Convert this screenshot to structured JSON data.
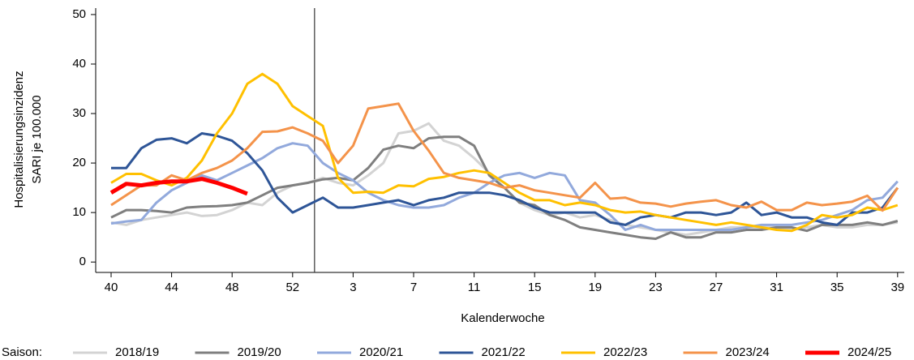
{
  "chart_data": {
    "type": "line",
    "ylabel": [
      "Hospitalisierungsinzidenz",
      "SARI je 100.000"
    ],
    "xlabel": "Kalenderwoche",
    "legend_title": "Saison:",
    "legend_position": "bottom",
    "categories": [
      "40",
      null,
      null,
      null,
      "44",
      null,
      null,
      null,
      "48",
      null,
      null,
      null,
      "52",
      null,
      null,
      null,
      "3",
      null,
      null,
      null,
      "7",
      null,
      null,
      null,
      "11",
      null,
      null,
      null,
      "15",
      null,
      null,
      null,
      "19",
      null,
      null,
      null,
      "23",
      null,
      null,
      null,
      "27",
      null,
      null,
      null,
      "31",
      null,
      null,
      null,
      "35",
      null,
      null,
      null,
      "39"
    ],
    "ylim": [
      -2.1,
      51.3
    ],
    "yticks": [
      0,
      10,
      20,
      30,
      40,
      50
    ],
    "series": [
      {
        "name": "2018/19",
        "color": "#d3d3d3",
        "width": 3,
        "values": [
          8,
          7.5,
          8.5,
          9,
          9.5,
          10,
          9.3,
          9.5,
          10.5,
          12,
          11.5,
          14,
          15.5,
          16,
          17,
          16,
          15.5,
          17.5,
          20,
          26,
          26.5,
          28,
          24.5,
          23.5,
          21,
          18,
          15,
          12,
          10.5,
          9.5,
          10,
          9,
          9.5,
          8.5,
          7.5,
          7,
          6.5,
          6,
          5.5,
          6,
          6.5,
          7,
          7,
          7,
          7,
          6.5,
          7,
          7.5,
          7,
          7,
          7.5,
          7.5,
          8
        ]
      },
      {
        "name": "2019/20",
        "color": "#7f7f7f",
        "width": 3,
        "values": [
          9,
          10.5,
          10.5,
          10.3,
          10,
          11,
          11.2,
          11.3,
          11.5,
          12,
          13.5,
          15,
          15.5,
          16,
          16.7,
          17,
          16.5,
          19,
          22.7,
          23.5,
          23,
          25,
          25.3,
          25.3,
          23.5,
          17.5,
          15,
          12,
          11.5,
          9.5,
          8.5,
          7,
          6.5,
          6,
          5.5,
          5,
          4.7,
          6,
          5,
          5,
          6,
          6,
          6.5,
          6.5,
          7,
          7,
          6.3,
          7.5,
          7.5,
          7.5,
          8,
          7.5,
          8.3
        ]
      },
      {
        "name": "2020/21",
        "color": "#92a9dc",
        "width": 3,
        "values": [
          7.8,
          8.2,
          8.5,
          12,
          14.5,
          16,
          17.5,
          16.5,
          18,
          19.5,
          21,
          23,
          24,
          23.5,
          20,
          18,
          16.5,
          14,
          12.5,
          11.5,
          11,
          11,
          11.5,
          13,
          14,
          16,
          17.5,
          18,
          17,
          18,
          17.5,
          12.5,
          12,
          9.5,
          6.5,
          7.5,
          6.5,
          6.5,
          6.5,
          6.5,
          6.5,
          6.5,
          7,
          7.5,
          7.5,
          7.5,
          8,
          8.5,
          9.5,
          10.5,
          12.5,
          13,
          16.3
        ]
      },
      {
        "name": "2021/22",
        "color": "#2e5597",
        "width": 3,
        "values": [
          19,
          19,
          23,
          24.7,
          25,
          24,
          26,
          25.5,
          24.5,
          22,
          18.5,
          13,
          10,
          11.5,
          13,
          11,
          11,
          11.5,
          12,
          12.5,
          11.5,
          12.5,
          13,
          14,
          14,
          14,
          13.5,
          12.5,
          11,
          10,
          10,
          10,
          10,
          8,
          7.5,
          9,
          9.5,
          9,
          10,
          10,
          9.5,
          10,
          12,
          9.5,
          10,
          9,
          9,
          8,
          7.5,
          10,
          10,
          11,
          15
        ]
      },
      {
        "name": "2022/23",
        "color": "#ffc000",
        "width": 3,
        "values": [
          16,
          17.8,
          17.8,
          16.5,
          15.5,
          17,
          20.5,
          26,
          30,
          36,
          38,
          36,
          31.5,
          29.5,
          27.5,
          17,
          14,
          14.2,
          14,
          15.5,
          15.3,
          16.8,
          17.2,
          18,
          18.5,
          18,
          16,
          14,
          12.5,
          12.5,
          11.5,
          12,
          11.5,
          10.5,
          10,
          10.2,
          9.5,
          9,
          8.5,
          8,
          7.5,
          8,
          7.5,
          7,
          6.5,
          6.3,
          7.5,
          9.5,
          9,
          9.5,
          11,
          10.5,
          11.5
        ]
      },
      {
        "name": "2023/24",
        "color": "#f4934a",
        "width": 3,
        "values": [
          11.5,
          13.5,
          15.5,
          15.5,
          17.5,
          16.5,
          18,
          19,
          20.5,
          23,
          26.3,
          26.4,
          27.2,
          26,
          24.5,
          20,
          23.5,
          31,
          31.5,
          32,
          26.5,
          22.5,
          18,
          17,
          16.5,
          16,
          15,
          15.5,
          14.5,
          14,
          13.5,
          13,
          16,
          12.8,
          13,
          12,
          11.8,
          11.2,
          11.8,
          12.2,
          12.5,
          11.5,
          11,
          12.2,
          10.5,
          10.5,
          12,
          11.5,
          11.8,
          12.2,
          13.4,
          10.4,
          15
        ]
      },
      {
        "name": "2024/25",
        "color": "#ff0000",
        "width": 5,
        "values": [
          14,
          15.8,
          15.5,
          16,
          16.3,
          16.3,
          16.8,
          16,
          15,
          13.8,
          null,
          null,
          null,
          null,
          null,
          null,
          null,
          null,
          null,
          null,
          null,
          null,
          null,
          null,
          null,
          null,
          null,
          null,
          null,
          null,
          null,
          null,
          null,
          null,
          null,
          null,
          null,
          null,
          null,
          null,
          null,
          null,
          null,
          null,
          null,
          null,
          null,
          null,
          null,
          null,
          null,
          null,
          null
        ]
      }
    ]
  }
}
